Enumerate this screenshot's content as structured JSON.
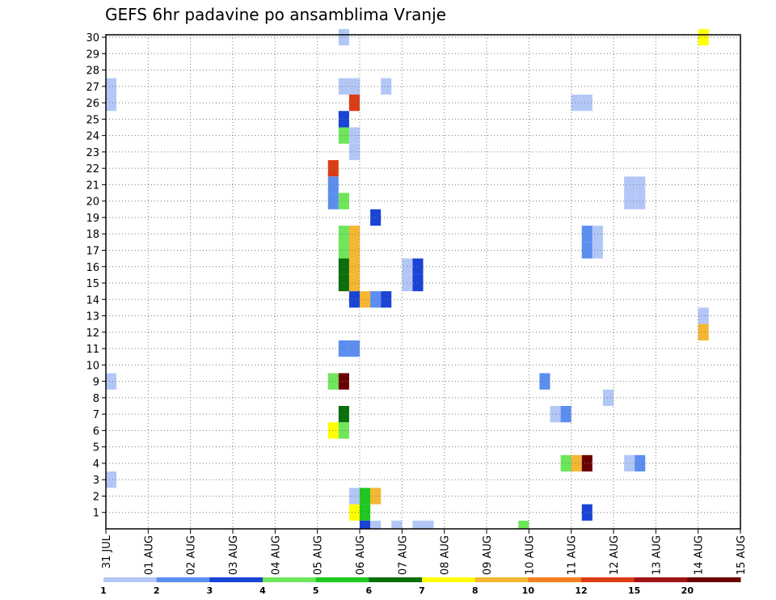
{
  "chart_data": {
    "type": "heatmap",
    "title": "GEFS 6hr padavine po ansamblima Vranje",
    "xlabel": "",
    "ylabel": "",
    "x_tick_labels": [
      "31 JUL",
      "01 AUG",
      "02 AUG",
      "03 AUG",
      "04 AUG",
      "05 AUG",
      "06 AUG",
      "07 AUG",
      "08 AUG",
      "09 AUG",
      "10 AUG",
      "11 AUG",
      "12 AUG",
      "13 AUG",
      "14 AUG",
      "15 AUG"
    ],
    "y_tick_labels": [
      "1",
      "2",
      "3",
      "4",
      "5",
      "6",
      "7",
      "8",
      "9",
      "10",
      "11",
      "12",
      "13",
      "14",
      "15",
      "16",
      "17",
      "18",
      "19",
      "20",
      "21",
      "22",
      "23",
      "24",
      "25",
      "26",
      "27",
      "28",
      "29",
      "30"
    ],
    "xlim": [
      0,
      15
    ],
    "ylim": [
      0,
      30
    ],
    "grid": true,
    "legend": {
      "placement": "bottom",
      "labels": [
        "1",
        "2",
        "3",
        "4",
        "5",
        "6",
        "7",
        "8",
        "10",
        "12",
        "15",
        "20"
      ],
      "colors": [
        "#b3c7f7",
        "#5b8ef0",
        "#1a44d6",
        "#6ee65a",
        "#1ec81e",
        "#0a6e0a",
        "#ffff00",
        "#f5b631",
        "#f57e1e",
        "#dc3c14",
        "#a01414",
        "#6b0000"
      ]
    },
    "cells": [
      {
        "member": 30,
        "time": 5.5,
        "color": "#b3c7f7"
      },
      {
        "member": 30,
        "time": 14,
        "color": "#ffff00"
      },
      {
        "member": 27,
        "time": 0,
        "color": "#b3c7f7"
      },
      {
        "member": 27,
        "time": 5.5,
        "color": "#b3c7f7"
      },
      {
        "member": 27,
        "time": 5.75,
        "color": "#b3c7f7"
      },
      {
        "member": 27,
        "time": 6.5,
        "color": "#b3c7f7"
      },
      {
        "member": 26,
        "time": 0,
        "color": "#b3c7f7"
      },
      {
        "member": 26,
        "time": 5.75,
        "color": "#dc3c14"
      },
      {
        "member": 26,
        "time": 11,
        "color": "#b3c7f7"
      },
      {
        "member": 26,
        "time": 11.25,
        "color": "#b3c7f7"
      },
      {
        "member": 25,
        "time": 5.5,
        "color": "#1a44d6"
      },
      {
        "member": 24,
        "time": 5.5,
        "color": "#6ee65a"
      },
      {
        "member": 24,
        "time": 5.75,
        "color": "#b3c7f7"
      },
      {
        "member": 23,
        "time": 5.75,
        "color": "#b3c7f7"
      },
      {
        "member": 22,
        "time": 5.25,
        "color": "#dc3c14"
      },
      {
        "member": 21,
        "time": 5.25,
        "color": "#5b8ef0"
      },
      {
        "member": 21,
        "time": 12.25,
        "color": "#b3c7f7"
      },
      {
        "member": 21,
        "time": 12.5,
        "color": "#b3c7f7"
      },
      {
        "member": 20,
        "time": 5.25,
        "color": "#5b8ef0"
      },
      {
        "member": 20,
        "time": 5.5,
        "color": "#6ee65a"
      },
      {
        "member": 20,
        "time": 12.25,
        "color": "#b3c7f7"
      },
      {
        "member": 20,
        "time": 12.5,
        "color": "#b3c7f7"
      },
      {
        "member": 19,
        "time": 6.25,
        "color": "#1a44d6"
      },
      {
        "member": 18,
        "time": 5.5,
        "color": "#6ee65a"
      },
      {
        "member": 18,
        "time": 5.75,
        "color": "#f5b631"
      },
      {
        "member": 18,
        "time": 11.25,
        "color": "#5b8ef0"
      },
      {
        "member": 18,
        "time": 11.5,
        "color": "#b3c7f7"
      },
      {
        "member": 17,
        "time": 5.5,
        "color": "#6ee65a"
      },
      {
        "member": 17,
        "time": 5.75,
        "color": "#f5b631"
      },
      {
        "member": 17,
        "time": 11.25,
        "color": "#5b8ef0"
      },
      {
        "member": 17,
        "time": 11.5,
        "color": "#b3c7f7"
      },
      {
        "member": 16,
        "time": 5.5,
        "color": "#0a6e0a"
      },
      {
        "member": 16,
        "time": 5.75,
        "color": "#f5b631"
      },
      {
        "member": 16,
        "time": 7,
        "color": "#b3c7f7"
      },
      {
        "member": 16,
        "time": 7.25,
        "color": "#1a44d6"
      },
      {
        "member": 15,
        "time": 5.5,
        "color": "#0a6e0a"
      },
      {
        "member": 15,
        "time": 5.75,
        "color": "#f5b631"
      },
      {
        "member": 15,
        "time": 7,
        "color": "#b3c7f7"
      },
      {
        "member": 15,
        "time": 7.25,
        "color": "#1a44d6"
      },
      {
        "member": 14,
        "time": 5.75,
        "color": "#1a44d6"
      },
      {
        "member": 14,
        "time": 6,
        "color": "#f5b631"
      },
      {
        "member": 14,
        "time": 6.25,
        "color": "#5b8ef0"
      },
      {
        "member": 14,
        "time": 6.5,
        "color": "#1a44d6"
      },
      {
        "member": 13,
        "time": 14,
        "color": "#b3c7f7"
      },
      {
        "member": 12,
        "time": 14,
        "color": "#f5b631"
      },
      {
        "member": 11,
        "time": 5.5,
        "color": "#5b8ef0"
      },
      {
        "member": 11,
        "time": 5.75,
        "color": "#5b8ef0"
      },
      {
        "member": 9,
        "time": 0,
        "color": "#b3c7f7"
      },
      {
        "member": 9,
        "time": 5.25,
        "color": "#6ee65a"
      },
      {
        "member": 9,
        "time": 5.5,
        "color": "#6b0000"
      },
      {
        "member": 9,
        "time": 10.25,
        "color": "#5b8ef0"
      },
      {
        "member": 8,
        "time": 11.75,
        "color": "#b3c7f7"
      },
      {
        "member": 7,
        "time": 5.5,
        "color": "#0a6e0a"
      },
      {
        "member": 7,
        "time": 10.5,
        "color": "#b3c7f7"
      },
      {
        "member": 7,
        "time": 10.75,
        "color": "#5b8ef0"
      },
      {
        "member": 6,
        "time": 5.25,
        "color": "#ffff00"
      },
      {
        "member": 6,
        "time": 5.5,
        "color": "#6ee65a"
      },
      {
        "member": 4,
        "time": 10.75,
        "color": "#6ee65a"
      },
      {
        "member": 4,
        "time": 11,
        "color": "#f5b631"
      },
      {
        "member": 4,
        "time": 11.25,
        "color": "#6b0000"
      },
      {
        "member": 4,
        "time": 12.25,
        "color": "#b3c7f7"
      },
      {
        "member": 4,
        "time": 12.5,
        "color": "#5b8ef0"
      },
      {
        "member": 3,
        "time": 0,
        "color": "#b3c7f7"
      },
      {
        "member": 2,
        "time": 5.75,
        "color": "#b3c7f7"
      },
      {
        "member": 2,
        "time": 6,
        "color": "#1ec81e"
      },
      {
        "member": 2,
        "time": 6.25,
        "color": "#f5b631"
      },
      {
        "member": 1,
        "time": 5.75,
        "color": "#ffff00"
      },
      {
        "member": 1,
        "time": 6,
        "color": "#1ec81e"
      },
      {
        "member": 1,
        "time": 11.25,
        "color": "#1a44d6"
      },
      {
        "member": 0,
        "time": 6,
        "color": "#1a44d6"
      },
      {
        "member": 0,
        "time": 6.25,
        "color": "#b3c7f7"
      },
      {
        "member": 0,
        "time": 6.75,
        "color": "#b3c7f7"
      },
      {
        "member": 0,
        "time": 7.25,
        "color": "#b3c7f7"
      },
      {
        "member": 0,
        "time": 7.5,
        "color": "#b3c7f7"
      },
      {
        "member": 0,
        "time": 9.75,
        "color": "#6ee65a"
      }
    ]
  }
}
